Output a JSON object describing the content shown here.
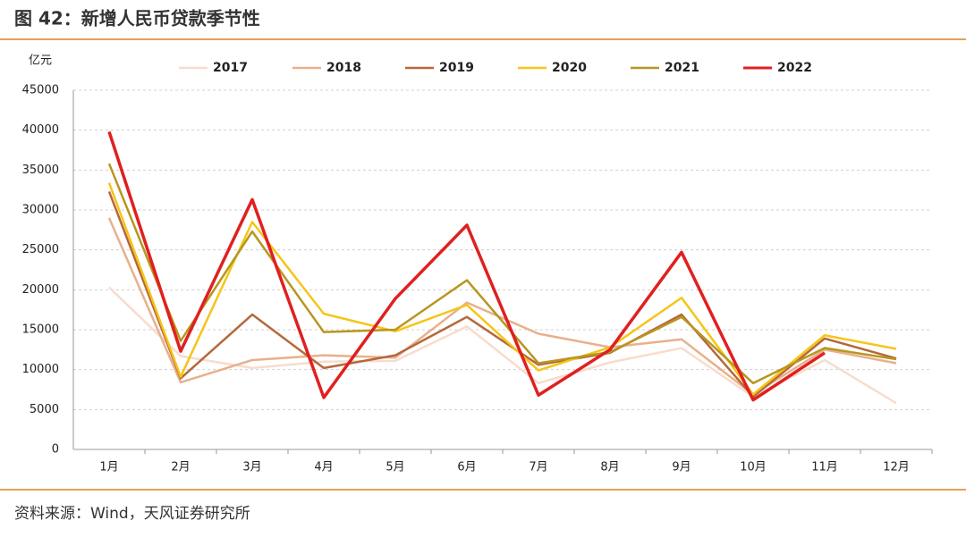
{
  "chart_data": {
    "type": "line",
    "title": "图 42：新增人民币贷款季节性",
    "y_label": "亿元",
    "source": "资料来源：Wind，天风证券研究所",
    "categories": [
      "1月",
      "2月",
      "3月",
      "4月",
      "5月",
      "6月",
      "7月",
      "8月",
      "9月",
      "10月",
      "11月",
      "12月"
    ],
    "series": [
      {
        "name": "2017",
        "color": "#f8dccc",
        "values": [
          20300,
          11700,
          10200,
          11000,
          11100,
          15400,
          8300,
          10900,
          12700,
          6600,
          11200,
          5800
        ]
      },
      {
        "name": "2018",
        "color": "#e8b08c",
        "values": [
          29000,
          8400,
          11200,
          11800,
          11500,
          18400,
          14500,
          12800,
          13800,
          6900,
          12500,
          10800
        ]
      },
      {
        "name": "2019",
        "color": "#b5683a",
        "values": [
          32300,
          8900,
          16900,
          10200,
          11800,
          16600,
          10600,
          12100,
          16900,
          6600,
          13900,
          11400
        ]
      },
      {
        "name": "2020",
        "color": "#f5c518",
        "values": [
          33400,
          9100,
          28500,
          17000,
          14800,
          18100,
          9900,
          12800,
          19000,
          6900,
          14300,
          12600
        ]
      },
      {
        "name": "2021",
        "color": "#b8961e",
        "values": [
          35800,
          13600,
          27300,
          14700,
          15000,
          21200,
          10800,
          12200,
          16600,
          8300,
          12700,
          11300
        ]
      },
      {
        "name": "2022",
        "color": "#e02020",
        "values": [
          39800,
          12300,
          31300,
          6500,
          18900,
          28100,
          6800,
          12500,
          24700,
          6200,
          12100,
          null
        ]
      }
    ],
    "ylim": [
      0,
      45000
    ],
    "yticks": [
      0,
      5000,
      10000,
      15000,
      20000,
      25000,
      30000,
      35000,
      40000,
      45000
    ],
    "grid": true
  }
}
